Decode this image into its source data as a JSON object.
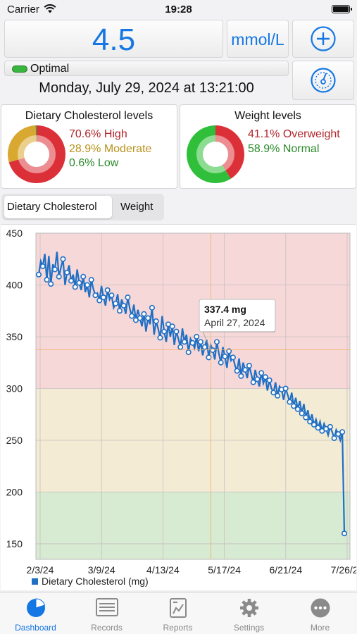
{
  "status_bar": {
    "carrier": "Carrier",
    "time": "19:28"
  },
  "reading": {
    "value": "4.5",
    "unit": "mmol/L",
    "status": "Optimal",
    "datetime": "Monday, July 29, 2024 at 13:21:00"
  },
  "summary": {
    "cholesterol": {
      "title": "Dietary Cholesterol levels",
      "high": "70.6% High",
      "moderate": "28.9% Moderate",
      "low": "0.6% Low",
      "slices": [
        70.6,
        28.9,
        0.6
      ],
      "colors": [
        "#dc3038",
        "#d9a830",
        "#3aa83a"
      ]
    },
    "weight": {
      "title": "Weight levels",
      "over": "41.1% Overweight",
      "normal": "58.9% Normal",
      "slices": [
        41.1,
        58.9
      ],
      "colors": [
        "#dc3038",
        "#2fbf3a"
      ]
    }
  },
  "tabs": {
    "cholesterol": "Dietary Cholesterol",
    "weight": "Weight"
  },
  "chart_data": {
    "type": "line",
    "series": [
      {
        "name": "Dietary Cholesterol (mg)",
        "color": "#1f6fc4"
      }
    ],
    "x_ticks": [
      "2/3/24",
      "3/9/24",
      "4/13/24",
      "5/17/24",
      "6/21/24",
      "7/26/24"
    ],
    "y_ticks": [
      "450",
      "400",
      "350",
      "300",
      "250",
      "200",
      "150"
    ],
    "ylim": [
      135,
      450
    ],
    "bands": [
      {
        "from": 300,
        "to": 450,
        "color": "#f7d8d8"
      },
      {
        "from": 200,
        "to": 300,
        "color": "#f3ebd4"
      },
      {
        "from": 135,
        "to": 200,
        "color": "#d7ead2"
      }
    ],
    "tooltip": {
      "value": "337.4 mg",
      "date": "April 27, 2024"
    },
    "points": [
      410,
      423,
      418,
      430,
      405,
      428,
      401,
      420,
      415,
      432,
      408,
      417,
      425,
      400,
      412,
      419,
      404,
      410,
      398,
      415,
      402,
      395,
      408,
      393,
      400,
      388,
      405,
      396,
      390,
      392,
      385,
      399,
      388,
      380,
      395,
      386,
      390,
      378,
      382,
      391,
      375,
      386,
      380,
      372,
      388,
      377,
      370,
      381,
      366,
      376,
      368,
      360,
      372,
      355,
      368,
      362,
      378,
      352,
      365,
      358,
      349,
      370,
      355,
      345,
      362,
      350,
      360,
      342,
      355,
      348,
      340,
      358,
      345,
      352,
      335,
      348,
      344,
      339,
      350,
      336,
      345,
      332,
      340,
      347,
      330,
      342,
      337,
      328,
      345,
      334,
      325,
      340,
      331,
      320,
      336,
      327,
      330,
      322,
      317,
      329,
      312,
      325,
      318,
      310,
      322,
      314,
      306,
      318,
      309,
      302,
      315,
      305,
      311,
      298,
      308,
      300,
      296,
      306,
      293,
      302,
      299,
      289,
      300,
      294,
      287,
      296,
      283,
      291,
      280,
      288,
      276,
      285,
      272,
      279,
      268,
      275,
      265,
      270,
      262,
      268,
      259,
      266,
      261,
      255,
      263,
      258,
      252,
      260,
      256,
      250,
      258,
      160
    ]
  },
  "bottom_tabs": [
    "Dashboard",
    "Records",
    "Reports",
    "Settings",
    "More"
  ]
}
